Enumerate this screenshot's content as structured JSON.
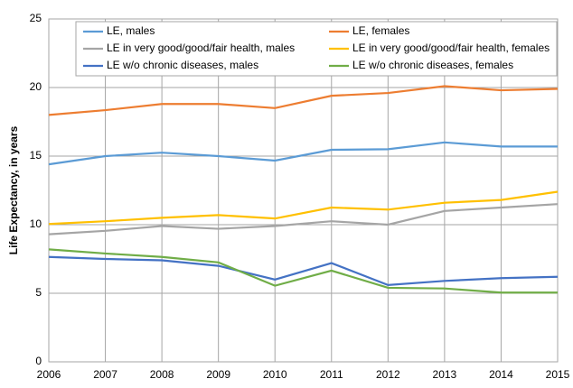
{
  "chart_data": {
    "type": "line",
    "y_label": "Life Expectancy, in years",
    "x": [
      2006,
      2007,
      2008,
      2009,
      2010,
      2011,
      2012,
      2013,
      2014,
      2015
    ],
    "xlim": [
      2006,
      2015
    ],
    "xticks": [
      2006,
      2007,
      2008,
      2009,
      2010,
      2011,
      2012,
      2013,
      2014,
      2015
    ],
    "ylim": [
      0,
      25
    ],
    "yticks": [
      0,
      5,
      10,
      15,
      20,
      25
    ],
    "grid": true,
    "legend": "top",
    "series": [
      {
        "name": "LE, males",
        "color": "#5b9bd5",
        "values": [
          14.4,
          15.0,
          15.25,
          15.0,
          14.67,
          15.46,
          15.5,
          16.0,
          15.7,
          15.7
        ]
      },
      {
        "name": "LE, females",
        "color": "#ed7d31",
        "values": [
          18.0,
          18.35,
          18.8,
          18.8,
          18.5,
          19.4,
          19.6,
          20.1,
          19.8,
          19.9
        ]
      },
      {
        "name": "LE in very good/good/fair health, males",
        "color": "#a5a5a5",
        "values": [
          9.3,
          9.55,
          9.9,
          9.7,
          9.9,
          10.25,
          10.0,
          11.0,
          11.25,
          11.5
        ]
      },
      {
        "name": "LE in very good/good/fair health, females",
        "color": "#ffc000",
        "values": [
          10.05,
          10.25,
          10.5,
          10.7,
          10.45,
          11.25,
          11.1,
          11.6,
          11.8,
          12.4
        ]
      },
      {
        "name": "LE w/o chronic diseases, males",
        "color": "#4472c4",
        "values": [
          7.65,
          7.5,
          7.4,
          7.0,
          6.0,
          7.2,
          5.6,
          5.9,
          6.1,
          6.2
        ]
      },
      {
        "name": "LE w/o chronic diseases, females",
        "color": "#70ad47",
        "values": [
          8.2,
          7.9,
          7.65,
          7.25,
          5.55,
          6.65,
          5.4,
          5.35,
          5.05,
          5.05
        ]
      }
    ]
  }
}
